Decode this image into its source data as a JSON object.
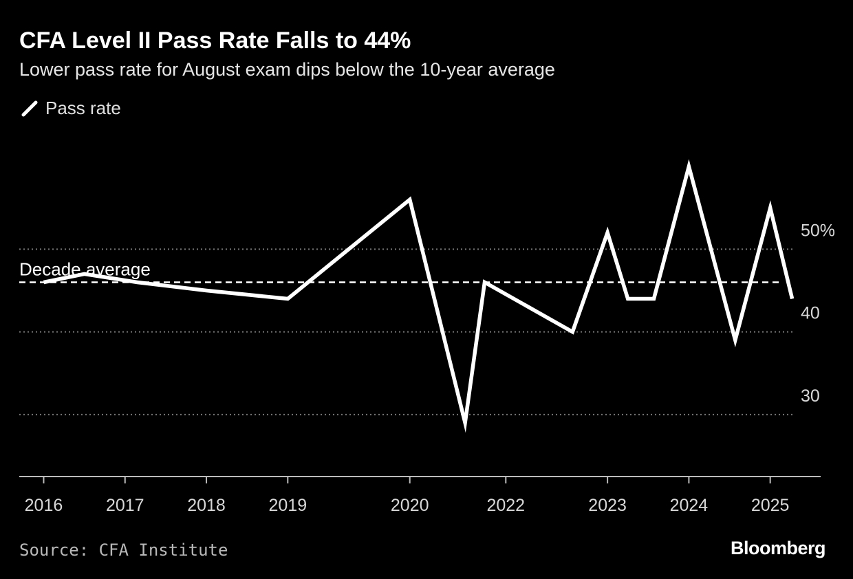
{
  "title": "CFA Level II Pass Rate Falls to 44%",
  "subtitle": "Lower pass rate for August exam dips below the 10-year average",
  "legend": {
    "label": "Pass rate"
  },
  "source": "Source: CFA Institute",
  "brand": "Bloomberg",
  "colors": {
    "background": "#000000",
    "line": "#ffffff",
    "grid": "#777777",
    "axis": "#bbbbbb"
  },
  "chart_data": {
    "type": "line",
    "title": "CFA Level II Pass Rate Falls to 44%",
    "subtitle": "Lower pass rate for August exam dips below the 10-year average",
    "xlabel": "",
    "ylabel": "",
    "ylim": [
      22.5,
      66
    ],
    "xlim": [
      2015.7,
      2025.55
    ],
    "y_ticks": [
      {
        "value": 30,
        "label": "30"
      },
      {
        "value": 40,
        "label": "40"
      },
      {
        "value": 50,
        "label": "50%"
      }
    ],
    "x_ticks": [
      {
        "value": 2016,
        "label": "2016"
      },
      {
        "value": 2017,
        "label": "2017"
      },
      {
        "value": 2018,
        "label": "2018"
      },
      {
        "value": 2019,
        "label": "2019"
      },
      {
        "value": 2020.5,
        "label": "2020"
      },
      {
        "value": 2021.68,
        "label": "2022"
      },
      {
        "value": 2022.93,
        "label": "2023"
      },
      {
        "value": 2023.93,
        "label": "2024"
      },
      {
        "value": 2024.93,
        "label": "2025"
      }
    ],
    "grid": true,
    "legend_position": "top-left",
    "reference_line": {
      "label": "Decade average",
      "value": 46
    },
    "series": [
      {
        "name": "Pass rate",
        "points": [
          {
            "x": 2016.0,
            "y": 46
          },
          {
            "x": 2016.5,
            "y": 47
          },
          {
            "x": 2017.15,
            "y": 46
          },
          {
            "x": 2018.0,
            "y": 45
          },
          {
            "x": 2019.0,
            "y": 44
          },
          {
            "x": 2020.5,
            "y": 56
          },
          {
            "x": 2021.18,
            "y": 29
          },
          {
            "x": 2021.42,
            "y": 46
          },
          {
            "x": 2022.5,
            "y": 40
          },
          {
            "x": 2022.93,
            "y": 52
          },
          {
            "x": 2023.18,
            "y": 44
          },
          {
            "x": 2023.5,
            "y": 44
          },
          {
            "x": 2023.93,
            "y": 60
          },
          {
            "x": 2024.5,
            "y": 39
          },
          {
            "x": 2024.93,
            "y": 55
          },
          {
            "x": 2025.2,
            "y": 44
          }
        ]
      }
    ]
  }
}
